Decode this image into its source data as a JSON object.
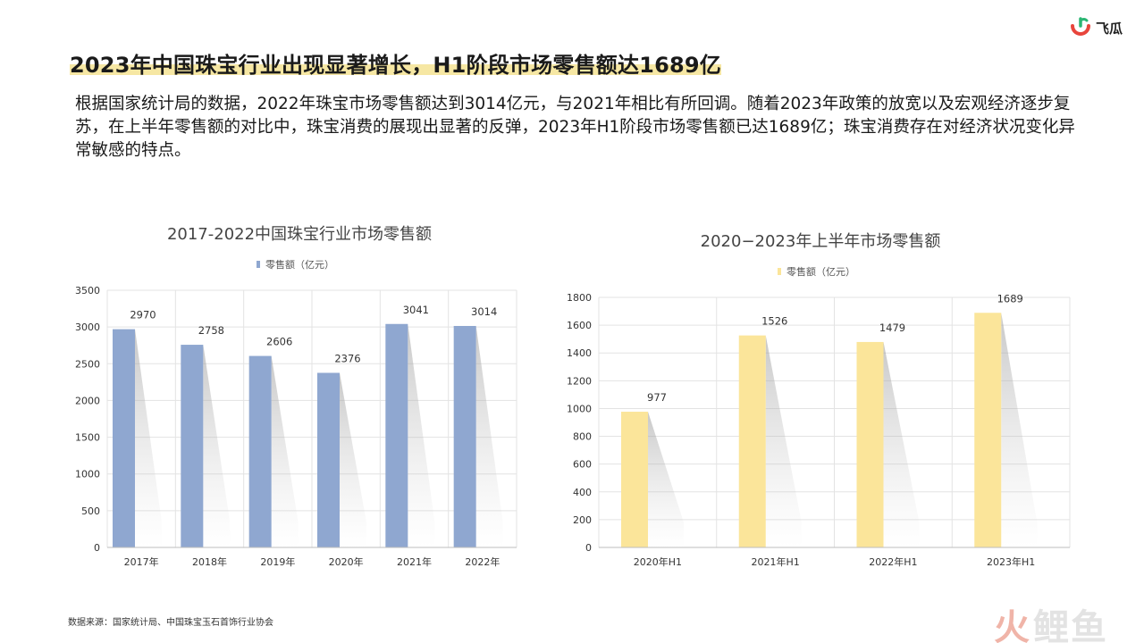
{
  "brand": {
    "logo_text": "飞瓜"
  },
  "title": "2023年中国珠宝行业出现显著增长，H1阶段市场零售额达1689亿",
  "description": "根据国家统计局的数据，2022年珠宝市场零售额达到3014亿元，与2021年相比有所回调。随着2023年政策的放宽以及宏观经济逐步复苏，在上半年零售额的对比中，珠宝消费的展现出显著的反弹，2023年H1阶段市场零售额已达1689亿；珠宝消费存在对经济状况变化异常敏感的特点。",
  "source": "数据来源：国家统计局、中国珠宝玉石首饰行业协会",
  "watermark": {
    "part1": "火",
    "part2": "鲤鱼"
  },
  "colors": {
    "bar_left": "#8fa7d0",
    "bar_right": "#fbe59a",
    "title_highlight": "#f6e7a3",
    "logo_green": "#2bb673",
    "logo_red": "#e8453c"
  },
  "chart_data": [
    {
      "type": "bar",
      "title": "2017-2022中国珠宝行业市场零售额",
      "categories": [
        "2017年",
        "2018年",
        "2019年",
        "2020年",
        "2021年",
        "2022年"
      ],
      "series": [
        {
          "name": "零售额（亿元）",
          "values": [
            2970,
            2758,
            2606,
            2376,
            3041,
            3014
          ]
        }
      ],
      "ylim": [
        0,
        3500
      ],
      "yticks": [
        0,
        500,
        1000,
        1500,
        2000,
        2500,
        3000,
        3500
      ],
      "grid": true,
      "legend": "top-center"
    },
    {
      "type": "bar",
      "title": "2020−2023年上半年市场零售额",
      "categories": [
        "2020年H1",
        "2021年H1",
        "2022年H1",
        "2023年H1"
      ],
      "series": [
        {
          "name": "零售额（亿元）",
          "values": [
            977,
            1526,
            1479,
            1689
          ]
        }
      ],
      "ylim": [
        0,
        1800
      ],
      "yticks": [
        0,
        200,
        400,
        600,
        800,
        1000,
        1200,
        1400,
        1600,
        1800
      ],
      "grid": true,
      "legend": "top-center"
    }
  ]
}
